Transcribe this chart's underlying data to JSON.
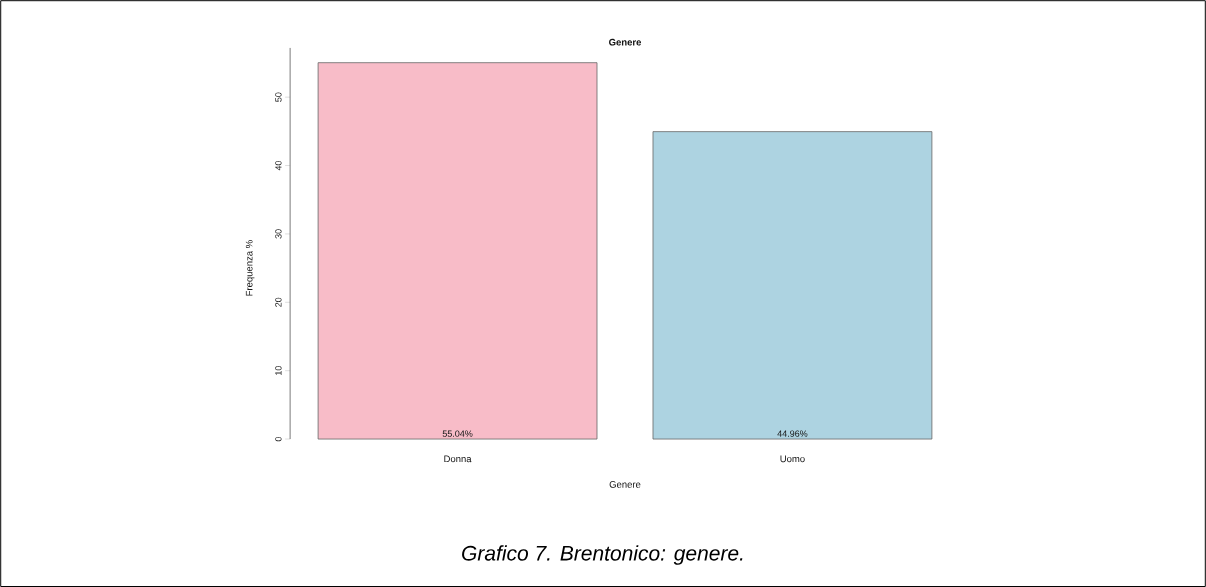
{
  "chart_data": {
    "type": "bar",
    "title": "Genere",
    "xlabel": "Genere",
    "ylabel": "Frequenza %",
    "categories": [
      "Donna",
      "Uomo"
    ],
    "values": [
      55.04,
      44.96
    ],
    "colors": [
      "#f8bcc8",
      "#add3e1"
    ],
    "value_labels": [
      "55.04%",
      "44.96%"
    ],
    "ylim": [
      0,
      57.2
    ],
    "yticks": [
      0,
      10,
      20,
      30,
      40,
      50
    ],
    "annotations": [
      "Grafico 7. Brentonico: genere."
    ]
  }
}
